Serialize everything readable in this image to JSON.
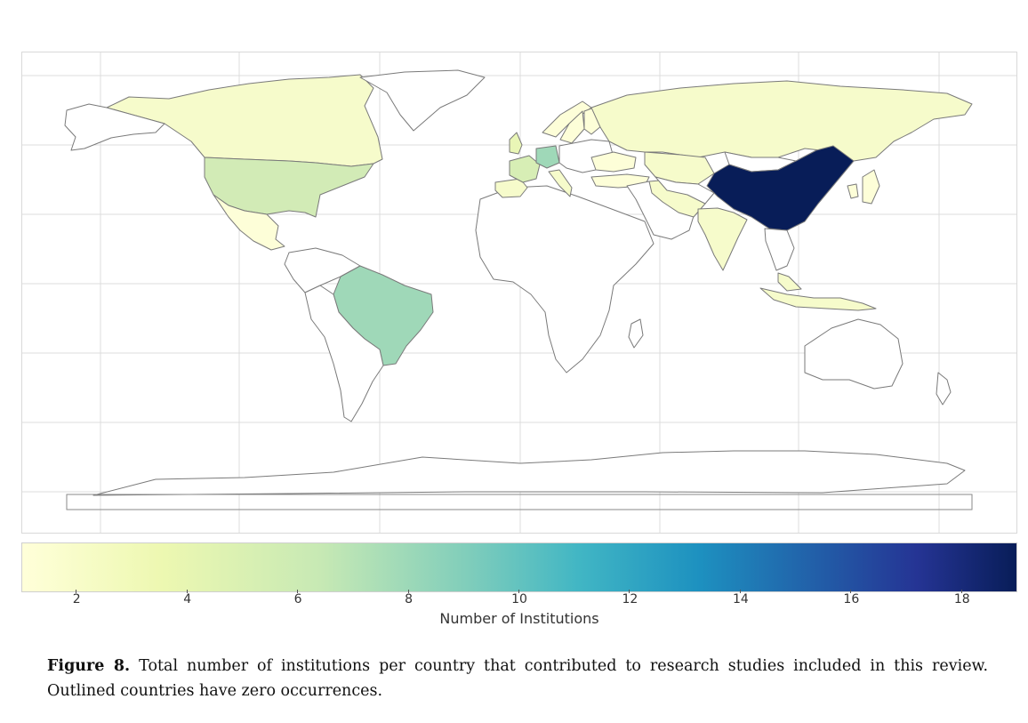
{
  "chart_data": {
    "type": "choropleth",
    "colormap": "YlGnBu",
    "colorbar": {
      "label": "Number of Institutions",
      "range": [
        1,
        19
      ],
      "ticks": [
        "2",
        "4",
        "6",
        "8",
        "10",
        "12",
        "14",
        "16",
        "18"
      ]
    },
    "zero_style": "outlined",
    "countries": [
      {
        "name": "China",
        "value": 19,
        "color": "#081d58"
      },
      {
        "name": "Brazil",
        "value": 7,
        "color": "#9fd8b8"
      },
      {
        "name": "Germany",
        "value": 7,
        "color": "#9fd8b8"
      },
      {
        "name": "United States",
        "value": 5,
        "color": "#d2ebb6"
      },
      {
        "name": "France",
        "value": 5,
        "color": "#d7eeb5"
      },
      {
        "name": "United Kingdom",
        "value": 4,
        "color": "#e9f6b6"
      },
      {
        "name": "Canada",
        "value": 2,
        "color": "#f6fbcb"
      },
      {
        "name": "Russia",
        "value": 2,
        "color": "#f6fbcb"
      },
      {
        "name": "India",
        "value": 2,
        "color": "#f6fbcb"
      },
      {
        "name": "Iran",
        "value": 2,
        "color": "#f6fbcb"
      },
      {
        "name": "Kazakhstan",
        "value": 2,
        "color": "#f6fbcb"
      },
      {
        "name": "Indonesia",
        "value": 2,
        "color": "#f6fbcb"
      },
      {
        "name": "Malaysia",
        "value": 2,
        "color": "#f6fbcb"
      },
      {
        "name": "Italy",
        "value": 2,
        "color": "#f6fbcb"
      },
      {
        "name": "Spain",
        "value": 2,
        "color": "#f6fbcb"
      },
      {
        "name": "Japan",
        "value": 1,
        "color": "#fdfed8"
      },
      {
        "name": "South Korea",
        "value": 1,
        "color": "#fdfed8"
      },
      {
        "name": "Norway",
        "value": 1,
        "color": "#fdfed8"
      },
      {
        "name": "Finland",
        "value": 1,
        "color": "#fdfed8"
      },
      {
        "name": "Sweden",
        "value": 1,
        "color": "#fdfed8"
      },
      {
        "name": "Ukraine",
        "value": 1,
        "color": "#fdfed8"
      },
      {
        "name": "Turkey",
        "value": 1,
        "color": "#fdfed8"
      },
      {
        "name": "Mexico",
        "value": 1,
        "color": "#fdfed8"
      }
    ],
    "grid": true
  },
  "caption": {
    "figure_label": "Figure 8.",
    "text": "Total number of institutions per country that contributed to research studies included in this review. Outlined countries have zero occurrences."
  }
}
